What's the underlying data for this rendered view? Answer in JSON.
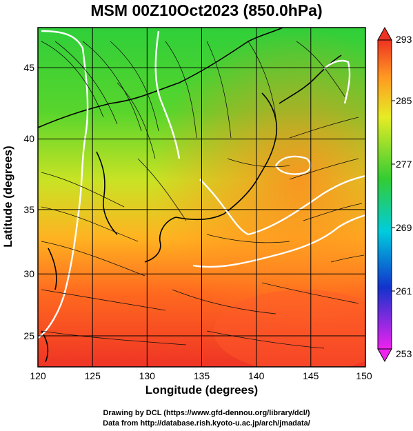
{
  "title": "MSM 00Z10Oct2023 (850.0hPa)",
  "xlabel": "Longitude (degrees)",
  "ylabel": "Latitude  (degrees)",
  "x_ticks": [
    "120",
    "125",
    "130",
    "135",
    "140",
    "145",
    "150"
  ],
  "y_ticks": [
    "25",
    "30",
    "35",
    "40",
    "45"
  ],
  "colorbar_ticks": [
    "293",
    "285",
    "277",
    "269",
    "261",
    "253"
  ],
  "credit_drawing": "Drawing by DCL (https://www.gfd-dennou.org/library/dcl/)",
  "credit_data": "Data from http://database.rish.kyoto-u.ac.jp/arch/jmadata/",
  "colors": {
    "green": "#33cc33",
    "yellow": "#ddee22",
    "orange": "#ff9922",
    "red": "#ee3322",
    "cyan": "#00ccdd",
    "blue": "#1133cc",
    "magenta": "#ee22ee"
  },
  "chart_data": {
    "type": "heatmap",
    "variable": "temperature with streamlines",
    "x_range": [
      120,
      150
    ],
    "y_range": [
      22.5,
      47.5
    ],
    "colorbar_range": [
      253,
      293
    ]
  }
}
